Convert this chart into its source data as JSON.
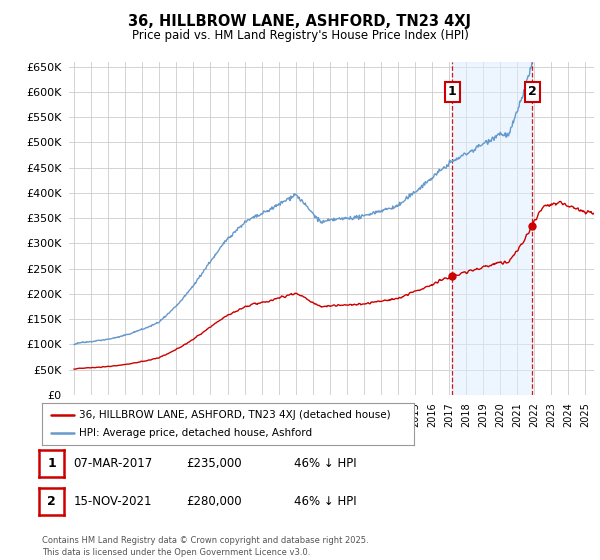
{
  "title": "36, HILLBROW LANE, ASHFORD, TN23 4XJ",
  "subtitle": "Price paid vs. HM Land Registry's House Price Index (HPI)",
  "legend_line1": "36, HILLBROW LANE, ASHFORD, TN23 4XJ (detached house)",
  "legend_line2": "HPI: Average price, detached house, Ashford",
  "footer": "Contains HM Land Registry data © Crown copyright and database right 2025.\nThis data is licensed under the Open Government Licence v3.0.",
  "annotation1_label": "1",
  "annotation1_date": "07-MAR-2017",
  "annotation1_price": "£235,000",
  "annotation1_hpi": "46% ↓ HPI",
  "annotation2_label": "2",
  "annotation2_date": "15-NOV-2021",
  "annotation2_price": "£280,000",
  "annotation2_hpi": "46% ↓ HPI",
  "sale1_year": 2017.18,
  "sale1_value": 235000,
  "sale2_year": 2021.88,
  "sale2_value": 280000,
  "red_color": "#cc0000",
  "blue_color": "#6699cc",
  "blue_fill": "#ddeeff",
  "dashed_color": "#cc0000",
  "background_color": "#ffffff",
  "grid_color": "#cccccc",
  "ylim": [
    0,
    660000
  ],
  "xlim_start": 1994.7,
  "xlim_end": 2025.5,
  "num1_y": 600000,
  "num2_y": 600000
}
